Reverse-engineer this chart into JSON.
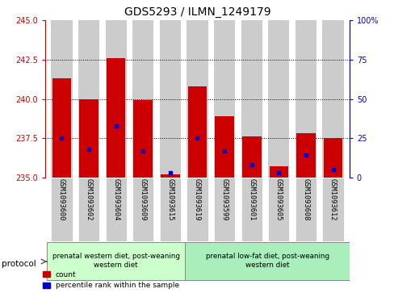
{
  "title": "GDS5293 / ILMN_1249179",
  "samples": [
    "GSM1093600",
    "GSM1093602",
    "GSM1093604",
    "GSM1093609",
    "GSM1093615",
    "GSM1093619",
    "GSM1093599",
    "GSM1093601",
    "GSM1093605",
    "GSM1093608",
    "GSM1093612"
  ],
  "red_values": [
    241.3,
    240.0,
    242.6,
    239.9,
    235.2,
    240.8,
    238.9,
    237.6,
    235.7,
    237.8,
    237.5
  ],
  "blue_values": [
    237.5,
    236.8,
    238.3,
    236.7,
    235.3,
    237.5,
    236.7,
    235.8,
    235.3,
    236.4,
    235.5
  ],
  "base": 235.0,
  "ylim_left": [
    235,
    245
  ],
  "ylim_right": [
    0,
    100
  ],
  "yticks_left": [
    235,
    237.5,
    240,
    242.5,
    245
  ],
  "yticks_right": [
    0,
    25,
    50,
    75,
    100
  ],
  "group1_label": "prenatal western diet, post-weaning\nwestern diet",
  "group2_label": "prenatal low-fat diet, post-weaning\nwestern diet",
  "group1_samples": 5,
  "group2_samples": 6,
  "protocol_label": "protocol",
  "legend_red": "count",
  "legend_blue": "percentile rank within the sample",
  "red_color": "#cc0000",
  "blue_color": "#0000cc",
  "bar_width": 0.7,
  "group1_bg": "#ccffcc",
  "group2_bg": "#aaeebb",
  "bar_bg": "#cccccc",
  "title_fontsize": 10,
  "tick_fontsize": 7,
  "label_fontsize": 7
}
